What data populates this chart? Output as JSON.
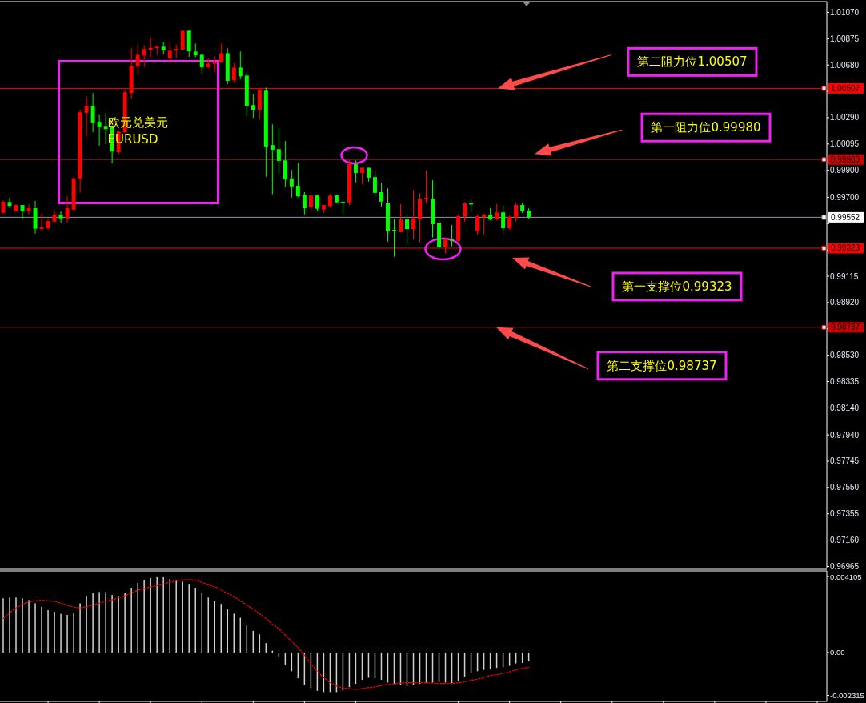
{
  "chart_data": [
    {
      "type": "candlestick",
      "title": "欧元兑美元",
      "subtitle": "EURUSD",
      "tick_labels": "y",
      "categories": [
        null,
        null,
        null,
        null,
        null,
        null,
        null,
        null,
        null,
        null,
        null,
        null,
        null,
        null,
        null,
        null,
        null,
        null,
        null,
        null,
        null,
        null,
        null,
        null,
        null,
        null,
        null,
        null,
        null,
        null,
        null,
        null,
        null,
        null,
        null,
        null,
        null,
        null,
        null,
        null,
        null,
        null,
        null,
        null,
        null,
        null,
        null,
        null,
        null,
        null,
        null,
        null,
        null,
        null,
        null,
        null,
        null,
        null,
        null,
        null,
        null,
        null,
        null,
        null,
        null,
        null,
        null,
        null,
        null,
        null,
        null,
        null,
        null,
        null,
        null,
        null,
        null,
        null,
        null,
        null,
        null,
        null,
        null,
        null,
        null,
        null,
        null,
        null,
        null,
        null,
        null,
        null,
        null,
        null,
        null,
        null,
        null,
        null,
        null,
        null,
        null,
        null,
        null,
        null,
        null,
        null,
        null,
        null,
        null,
        null,
        null,
        null,
        null,
        null,
        null,
        null,
        null,
        null,
        null,
        null,
        null,
        null,
        null,
        null,
        null,
        null,
        null,
        null,
        null
      ],
      "ohlc": [
        [
          0.99585,
          0.99678,
          0.99579,
          0.99668
        ],
        [
          0.99665,
          0.99696,
          0.99621,
          0.99637
        ],
        [
          0.99597,
          0.99649,
          0.99595,
          0.99643
        ],
        [
          0.99643,
          0.99643,
          0.99544,
          0.99597
        ],
        [
          0.99597,
          0.99649,
          0.99573,
          0.99619
        ],
        [
          0.99619,
          0.99674,
          0.99431,
          0.99467
        ],
        [
          0.99465,
          0.99579,
          0.99449,
          0.99477
        ],
        [
          0.99471,
          0.99544,
          0.99461,
          0.99524
        ],
        [
          0.9952,
          0.99609,
          0.99517,
          0.99573
        ],
        [
          0.99573,
          0.99595,
          0.99508,
          0.99544
        ],
        [
          0.99544,
          0.99708,
          0.99514,
          0.99619
        ],
        [
          0.99609,
          0.9985,
          0.99603,
          0.9984
        ],
        [
          0.9984,
          1.00349,
          0.99733,
          1.0033
        ],
        [
          1.00326,
          1.00448,
          1.00152,
          1.00379
        ],
        [
          1.00377,
          1.00472,
          1.00182,
          1.00255
        ],
        [
          1.00259,
          1.0031,
          1.00083,
          1.00225
        ],
        [
          1.00229,
          1.00324,
          1.00093,
          1.00205
        ],
        [
          1.00219,
          1.00231,
          0.99951,
          1.0004
        ],
        [
          1.00034,
          1.00192,
          1.00014,
          1.00188
        ],
        [
          1.00182,
          1.00497,
          1.0018,
          1.00478
        ],
        [
          1.00472,
          1.00808,
          1.00425,
          1.00673
        ],
        [
          1.00669,
          1.00833,
          1.00606,
          1.00756
        ],
        [
          1.0075,
          1.00827,
          1.00666,
          1.00798
        ],
        [
          1.00794,
          1.00887,
          1.0074,
          1.00808
        ],
        [
          1.00805,
          1.00823,
          1.00752,
          1.00816
        ],
        [
          1.00816,
          1.00851,
          1.00758,
          1.00793
        ],
        [
          1.00733,
          1.00851,
          1.00691,
          1.00786
        ],
        [
          1.00788,
          1.00833,
          1.00734,
          1.008
        ],
        [
          1.00793,
          1.00934,
          1.00788,
          1.00934
        ],
        [
          1.00934,
          1.00934,
          1.0074,
          1.00782
        ],
        [
          1.0078,
          1.00839,
          1.00738,
          1.00752
        ],
        [
          1.00756,
          1.00756,
          1.00616,
          1.00663
        ],
        [
          1.00663,
          1.00728,
          1.00656,
          1.00691
        ],
        [
          1.00689,
          1.00744,
          1.0063,
          1.00699
        ],
        [
          1.00703,
          1.00839,
          1.00695,
          1.00768
        ],
        [
          1.00768,
          1.00804,
          1.00539,
          1.00563
        ],
        [
          1.00567,
          1.00695,
          1.00547,
          1.00661
        ],
        [
          1.00661,
          1.0078,
          1.00574,
          1.00596
        ],
        [
          1.00602,
          1.00626,
          1.003,
          1.00377
        ],
        [
          1.00383,
          1.00462,
          1.00288,
          1.00348
        ],
        [
          1.00348,
          1.00508,
          1.00277,
          1.00497
        ],
        [
          1.0049,
          1.00513,
          0.99852,
          1.00077
        ],
        [
          1.00087,
          1.00241,
          0.99722,
          1.00053
        ],
        [
          1.00057,
          1.00211,
          0.9988,
          0.9997
        ],
        [
          0.99974,
          1.00117,
          0.99777,
          0.99832
        ],
        [
          0.9984,
          0.99903,
          0.99698,
          0.99781
        ],
        [
          0.99785,
          0.99955,
          0.99702,
          0.99708
        ],
        [
          0.99718,
          0.99738,
          0.99573,
          0.99619
        ],
        [
          0.99625,
          0.99724,
          0.99585,
          0.99714
        ],
        [
          0.99714,
          0.99722,
          0.99595,
          0.99615
        ],
        [
          0.99609,
          0.99643,
          0.99585,
          0.99643
        ],
        [
          0.99635,
          0.99726,
          0.99625,
          0.99712
        ],
        [
          0.99714,
          0.99722,
          0.9966,
          0.99663
        ],
        [
          0.99667,
          0.99688,
          0.99573,
          0.99661
        ],
        [
          0.99663,
          0.99979,
          0.99639,
          0.99945
        ],
        [
          0.99945,
          0.99974,
          0.9981,
          0.99881
        ],
        [
          0.99881,
          0.99925,
          0.99797,
          0.99919
        ],
        [
          0.99919,
          0.99919,
          0.99816,
          0.99846
        ],
        [
          0.9985,
          0.99896,
          0.99726,
          0.99733
        ],
        [
          0.99738,
          0.99807,
          0.99629,
          0.99668
        ],
        [
          0.99655,
          0.99767,
          0.99372,
          0.99449
        ],
        [
          0.99459,
          0.99536,
          0.9926,
          0.99451
        ],
        [
          0.99441,
          0.99649,
          0.9944,
          0.99536
        ],
        [
          0.99536,
          0.99566,
          0.99347,
          0.99465
        ],
        [
          0.99465,
          0.99754,
          0.99388,
          0.99544
        ],
        [
          0.99536,
          0.99732,
          0.99366,
          0.99691
        ],
        [
          0.99685,
          0.99899,
          0.99655,
          0.99696
        ],
        [
          0.99691,
          0.99826,
          0.99402,
          0.99501
        ],
        [
          0.99507,
          0.9953,
          0.99303,
          0.99329
        ],
        [
          0.99329,
          0.99402,
          0.99283,
          0.99388
        ],
        [
          0.99388,
          0.99495,
          0.99337,
          0.99378
        ],
        [
          0.99378,
          0.99576,
          0.99372,
          0.9956
        ],
        [
          0.99556,
          0.99663,
          0.9952,
          0.99655
        ],
        [
          0.99655,
          0.99682,
          0.99589,
          0.99647
        ],
        [
          0.99451,
          0.99576,
          0.99425,
          0.9956
        ],
        [
          0.99552,
          0.99579,
          0.99425,
          0.99573
        ],
        [
          0.99573,
          0.99619,
          0.9953,
          0.99536
        ],
        [
          0.9954,
          0.99649,
          0.9953,
          0.99588
        ],
        [
          0.99589,
          0.99639,
          0.99431,
          0.99471
        ],
        [
          0.99471,
          0.99564,
          0.99461,
          0.99556
        ],
        [
          0.9955,
          0.99659,
          0.9952,
          0.99643
        ],
        [
          0.99643,
          0.99659,
          0.99584,
          0.99599
        ],
        [
          0.99599,
          0.99619,
          0.9954,
          0.99552
        ],
        null,
        null,
        null,
        null,
        null,
        null,
        null,
        null,
        null,
        null,
        null,
        null,
        null,
        null,
        null,
        null,
        null,
        null,
        null,
        null,
        null,
        null,
        null,
        null,
        null,
        null,
        null,
        null,
        null,
        null,
        null,
        null,
        null,
        null,
        null,
        null,
        null,
        null,
        null,
        null,
        null,
        null,
        null,
        null,
        null,
        null
      ],
      "colors": [
        "#ff0000",
        "#00ff00",
        "#ff0000",
        "#00ff00",
        "#ff0000",
        "#00ff00",
        "#ff0000",
        "#ff0000",
        "#ff0000",
        "#00ff00",
        "#ff0000",
        "#ff0000",
        "#ff0000",
        "#ff0000",
        "#00ff00",
        "#00ff00",
        "#00ff00",
        "#00ff00",
        "#ff0000",
        "#ff0000",
        "#ff0000",
        "#ff0000",
        "#ff0000",
        "#ff0000",
        "#ff0000",
        "#00ff00",
        "#ff0000",
        "#ff0000",
        "#ff0000",
        "#00ff00",
        "#00ff00",
        "#00ff00",
        "#ff0000",
        "#ff0000",
        "#ff0000",
        "#00ff00",
        "#ff0000",
        "#00ff00",
        "#00ff00",
        "#00ff00",
        "#ff0000",
        "#00ff00",
        "#00ff00",
        "#00ff00",
        "#00ff00",
        "#00ff00",
        "#00ff00",
        "#00ff00",
        "#ff0000",
        "#00ff00",
        "#ff0000",
        "#ff0000",
        "#00ff00",
        "#00ff00",
        "#ff0000",
        "#00ff00",
        "#ff0000",
        "#00ff00",
        "#00ff00",
        "#00ff00",
        "#00ff00",
        "#00ff00",
        "#ff0000",
        "#00ff00",
        "#ff0000",
        "#ff0000",
        "#ff0000",
        "#00ff00",
        "#00ff00",
        "#ff0000",
        "#00ff00",
        "#ff0000",
        "#ff0000",
        "#00ff00",
        "#ff0000",
        "#ff0000",
        "#00ff00",
        "#ff0000",
        "#00ff00",
        "#ff0000",
        "#ff0000",
        "#00ff00",
        "#00ff00",
        null,
        null,
        null,
        null,
        null,
        null,
        null,
        null,
        null,
        null,
        null,
        null,
        null,
        null,
        null,
        null,
        null,
        null,
        null,
        null,
        null,
        null,
        null,
        null,
        null,
        null,
        null,
        null,
        null,
        null,
        null,
        null,
        null,
        null,
        null,
        null,
        null,
        null,
        null,
        null,
        null,
        null,
        null,
        null,
        null,
        null
      ],
      "ylim": [
        0.9695,
        1.0115
      ],
      "yticks": [
        {
          "value": 1.0107,
          "label": "1.01070"
        },
        {
          "value": 1.00875,
          "label": "1.00875"
        },
        {
          "value": 1.0068,
          "label": "1.00680"
        },
        {
          "value": 1.00485,
          "label": null
        },
        {
          "value": 1.0029,
          "label": "1.00290"
        },
        {
          "value": 1.00095,
          "label": "1.00095"
        },
        {
          "value": 0.999,
          "label": "0.99900"
        },
        {
          "value": 0.997,
          "label": "0.99700"
        },
        {
          "value": 0.99505,
          "label": null
        },
        {
          "value": 0.9931,
          "label": null
        },
        {
          "value": 0.99115,
          "label": "0.99115"
        },
        {
          "value": 0.9892,
          "label": "0.98920"
        },
        {
          "value": 0.98725,
          "label": null
        },
        {
          "value": 0.9853,
          "label": "0.98530"
        },
        {
          "value": 0.98335,
          "label": "0.98335"
        },
        {
          "value": 0.9814,
          "label": "0.98140"
        },
        {
          "value": 0.9794,
          "label": "0.97940"
        },
        {
          "value": 0.97745,
          "label": "0.97745"
        },
        {
          "value": 0.9755,
          "label": "0.97550"
        },
        {
          "value": 0.97355,
          "label": "0.97355"
        },
        {
          "value": 0.9716,
          "label": "0.97160"
        },
        {
          "value": 0.96965,
          "label": "0.96965"
        }
      ],
      "ref_lines": [
        {
          "axis": "y",
          "value": 1.00507,
          "label": "1.00507",
          "color": "#ff0000"
        },
        {
          "axis": "y",
          "value": 0.9998,
          "label": "0.99980",
          "color": "#d00000"
        },
        {
          "axis": "y",
          "value": 0.99552,
          "label": "0.99552",
          "color": "#8c96a0"
        },
        {
          "axis": "y",
          "value": 0.99323,
          "label": "0.99323",
          "color": "#ff0000"
        },
        {
          "axis": "y",
          "value": 0.98737,
          "label": "0.98737",
          "color": "#d00000"
        }
      ],
      "annotations": [
        {
          "text": "第二阻力位1.00507",
          "y": 1.00507
        },
        {
          "text": "第一阻力位0.99980",
          "y": 0.9998
        },
        {
          "text": "第一支撑位0.99323",
          "y": 0.99323
        },
        {
          "text": "第二支撑位0.98737",
          "y": 0.98737
        }
      ]
    },
    {
      "type": "bar",
      "tick_labels": "y",
      "categories": [
        null,
        null,
        null,
        null,
        null,
        null,
        null,
        null,
        null,
        null,
        null,
        null,
        null,
        null,
        null,
        null,
        null,
        null,
        null,
        null,
        null,
        null,
        null,
        null,
        null,
        null,
        null,
        null,
        null,
        null,
        null,
        null,
        null,
        null,
        null,
        null,
        null,
        null,
        null,
        null,
        null,
        null,
        null,
        null,
        null,
        null,
        null,
        null,
        null,
        null,
        null,
        null,
        null,
        null,
        null,
        null,
        null,
        null,
        null,
        null,
        null,
        null,
        null,
        null,
        null,
        null,
        null,
        null,
        null,
        null,
        null,
        null,
        null,
        null,
        null,
        null,
        null,
        null,
        null,
        null,
        null,
        null,
        null,
        null,
        null,
        null,
        null,
        null,
        null,
        null,
        null,
        null,
        null,
        null,
        null,
        null,
        null,
        null,
        null,
        null,
        null,
        null,
        null,
        null,
        null,
        null,
        null,
        null,
        null,
        null,
        null,
        null,
        null,
        null,
        null,
        null,
        null,
        null,
        null,
        null,
        null,
        null,
        null,
        null,
        null,
        null,
        null,
        null,
        null
      ],
      "series": [
        {
          "type": "bar",
          "color": "#d0d0d0",
          "values": [
            0.00293,
            0.00297,
            0.00297,
            0.00293,
            0.00284,
            0.00266,
            0.00247,
            0.00229,
            0.0022,
            0.00209,
            0.00203,
            0.00216,
            0.00266,
            0.00306,
            0.00324,
            0.00327,
            0.00327,
            0.00311,
            0.00306,
            0.00324,
            0.0035,
            0.00376,
            0.00393,
            0.00402,
            0.00407,
            0.00407,
            0.00397,
            0.00391,
            0.00383,
            0.00367,
            0.0035,
            0.00319,
            0.00297,
            0.00277,
            0.00263,
            0.00234,
            0.0021,
            0.00188,
            0.00151,
            0.00117,
            0.00098,
            0.00051,
            0.0001,
            -0.00026,
            -0.00067,
            -0.00101,
            -0.00139,
            -0.00173,
            -0.00192,
            -0.00207,
            -0.00214,
            -0.00214,
            -0.00214,
            -0.00207,
            -0.00187,
            -0.00169,
            -0.00147,
            -0.00136,
            -0.00139,
            -0.00147,
            -0.00162,
            -0.00169,
            -0.00176,
            -0.00181,
            -0.00176,
            -0.00169,
            -0.00165,
            -0.00162,
            -0.00158,
            -0.00162,
            -0.00165,
            -0.00154,
            -0.00131,
            -0.00112,
            -0.00101,
            -0.00094,
            -0.0009,
            -0.00083,
            -0.00079,
            -0.00072,
            -0.00059,
            -0.00056,
            -0.00048,
            null,
            null,
            null,
            null,
            null,
            null,
            null,
            null,
            null,
            null,
            null,
            null,
            null,
            null,
            null,
            null,
            null,
            null,
            null,
            null,
            null,
            null,
            null,
            null,
            null,
            null,
            null,
            null,
            null,
            null,
            null,
            null,
            null,
            null,
            null,
            null,
            null,
            null,
            null,
            null,
            null,
            null,
            null,
            null,
            null,
            null
          ]
        },
        {
          "type": "line",
          "color": "#ff0000",
          "line_style": "dotted",
          "values": [
            0.00184,
            0.00215,
            0.00241,
            0.0026,
            0.00274,
            0.0028,
            0.00282,
            0.0028,
            0.00277,
            0.00267,
            0.00256,
            0.00245,
            0.00242,
            0.00247,
            0.00256,
            0.00267,
            0.00277,
            0.00285,
            0.00295,
            0.00306,
            0.00322,
            0.00337,
            0.00346,
            0.00354,
            0.00361,
            0.0037,
            0.0038,
            0.00388,
            0.00393,
            0.00394,
            0.00391,
            0.0038,
            0.00365,
            0.00356,
            0.00338,
            0.00319,
            0.00303,
            0.0028,
            0.00256,
            0.00234,
            0.0021,
            0.00184,
            0.00154,
            0.00128,
            0.00094,
            0.00061,
            0.00026,
            -0.00014,
            -0.00059,
            -0.00101,
            -0.00136,
            -0.00162,
            -0.00181,
            -0.00192,
            -0.00195,
            -0.00199,
            -0.00195,
            -0.00189,
            -0.00186,
            -0.00178,
            -0.00173,
            -0.00169,
            -0.00165,
            -0.00163,
            -0.00163,
            -0.00163,
            -0.00163,
            -0.00165,
            -0.00167,
            -0.00167,
            -0.00167,
            -0.00163,
            -0.00158,
            -0.0015,
            -0.00144,
            -0.00136,
            -0.00123,
            -0.0012,
            -0.00112,
            -0.00105,
            -0.00094,
            -0.00085,
            -0.0008,
            null,
            null,
            null,
            null,
            null,
            null,
            null,
            null,
            null,
            null,
            null,
            null,
            null,
            null,
            null,
            null,
            null,
            null,
            null,
            null,
            null,
            null,
            null,
            null,
            null,
            null,
            null,
            null,
            null,
            null,
            null,
            null,
            null,
            null,
            null,
            null,
            null,
            null,
            null,
            null,
            null,
            null,
            null,
            null,
            null,
            null
          ]
        }
      ],
      "ylim": [
        -0.00264,
        0.00441
      ],
      "yticks": [
        0.004105,
        {
          "value": 0,
          "label": "0.00"
        },
        -0.002315
      ]
    }
  ]
}
